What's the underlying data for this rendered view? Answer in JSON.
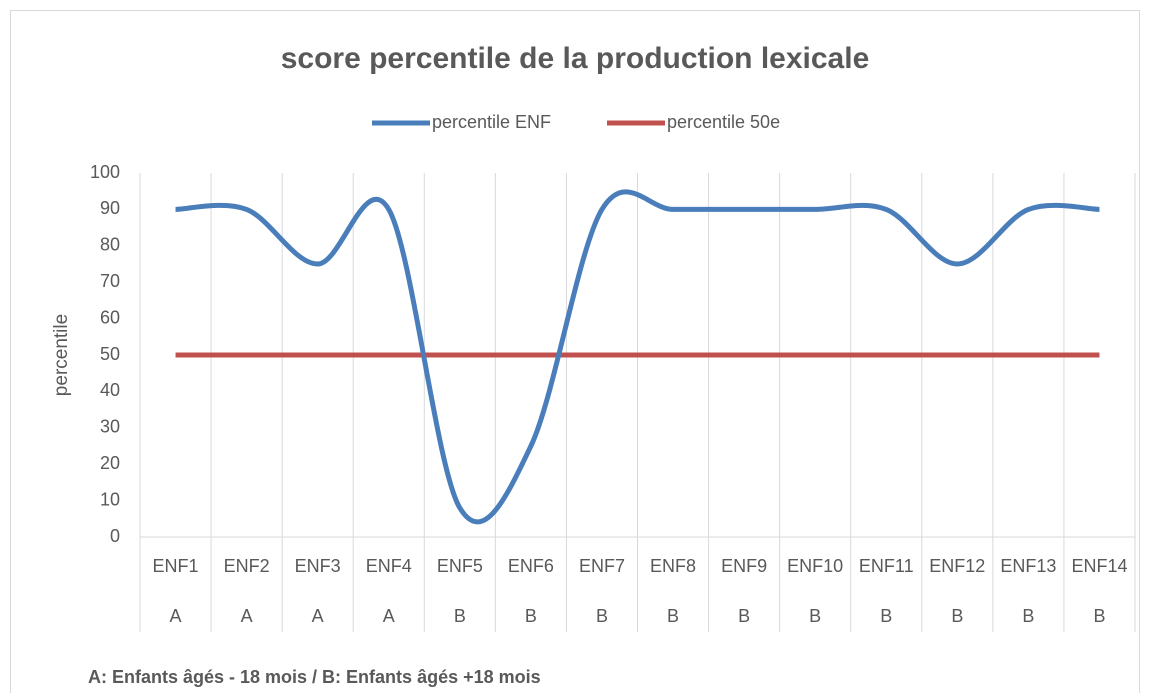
{
  "chart_data": {
    "type": "line",
    "title": "score percentile de la production lexicale",
    "y_label": "percentile",
    "categories": [
      "ENF1",
      "ENF2",
      "ENF3",
      "ENF4",
      "ENF5",
      "ENF6",
      "ENF7",
      "ENF8",
      "ENF9",
      "ENF10",
      "ENF11",
      "ENF12",
      "ENF13",
      "ENF14"
    ],
    "groups": [
      "A",
      "A",
      "A",
      "A",
      "B",
      "B",
      "B",
      "B",
      "B",
      "B",
      "B",
      "B",
      "B",
      "B"
    ],
    "series": [
      {
        "name": "percentile ENF",
        "color": "#4a7ebb",
        "values": [
          90,
          90,
          75,
          90,
          8,
          25,
          90,
          90,
          90,
          90,
          90,
          75,
          90,
          90
        ]
      },
      {
        "name": "percentile 50e",
        "color": "#c0504d",
        "values": [
          50,
          50,
          50,
          50,
          50,
          50,
          50,
          50,
          50,
          50,
          50,
          50,
          50,
          50
        ]
      }
    ],
    "smooth": true,
    "ylim": [
      0,
      100
    ],
    "yticks": [
      0,
      10,
      20,
      30,
      40,
      50,
      60,
      70,
      80,
      90,
      100
    ],
    "grid": false,
    "legend": "top",
    "note": "A: Enfants âgés - 18 mois / B: Enfants âgés +18 mois"
  }
}
